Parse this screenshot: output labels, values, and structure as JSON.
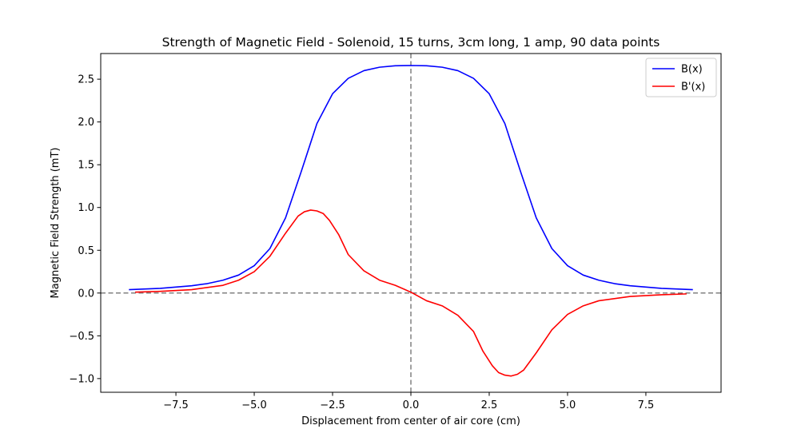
{
  "chart_data": {
    "type": "line",
    "title": "Strength of Magnetic Field - Solenoid, 15 turns, 3cm long, 1 amp, 90 data points",
    "xlabel": "Displacement from center of air core (cm)",
    "ylabel": "Magnetic Field Strength (mT)",
    "xlim": [
      -9.9,
      9.9
    ],
    "ylim": [
      -1.16,
      2.8
    ],
    "xticks": [
      -7.5,
      -5.0,
      -2.5,
      0.0,
      2.5,
      5.0,
      7.5
    ],
    "xtick_labels": [
      "−7.5",
      "−5.0",
      "−2.5",
      "0.0",
      "2.5",
      "5.0",
      "7.5"
    ],
    "yticks": [
      -1.0,
      -0.5,
      0.0,
      0.5,
      1.0,
      1.5,
      2.0,
      2.5
    ],
    "ytick_labels": [
      "−1.0",
      "−0.5",
      "0.0",
      "0.5",
      "1.0",
      "1.5",
      "2.0",
      "2.5"
    ],
    "grid": false,
    "legend_position": "top-right",
    "reference_lines": {
      "x": 0,
      "y": 0,
      "color": "#808080",
      "style": "dashed"
    },
    "series": [
      {
        "name": "B(x)",
        "color": "#0000ff",
        "x": [
          -9.0,
          -8.0,
          -7.0,
          -6.5,
          -6.0,
          -5.5,
          -5.0,
          -4.5,
          -4.0,
          -3.5,
          -3.0,
          -2.5,
          -2.0,
          -1.5,
          -1.0,
          -0.5,
          0.0,
          0.5,
          1.0,
          1.5,
          2.0,
          2.5,
          3.0,
          3.5,
          4.0,
          4.5,
          5.0,
          5.5,
          6.0,
          6.5,
          7.0,
          8.0,
          9.0
        ],
        "y": [
          0.04,
          0.055,
          0.085,
          0.11,
          0.15,
          0.21,
          0.32,
          0.52,
          0.88,
          1.42,
          1.98,
          2.33,
          2.51,
          2.6,
          2.64,
          2.657,
          2.66,
          2.657,
          2.64,
          2.6,
          2.51,
          2.33,
          1.98,
          1.42,
          0.88,
          0.52,
          0.32,
          0.21,
          0.15,
          0.11,
          0.085,
          0.055,
          0.04
        ]
      },
      {
        "name": "B'(x)",
        "color": "#ff0000",
        "x": [
          -8.8,
          -8.0,
          -7.0,
          -6.0,
          -5.5,
          -5.0,
          -4.5,
          -4.0,
          -3.6,
          -3.4,
          -3.2,
          -3.0,
          -2.8,
          -2.6,
          -2.3,
          -2.0,
          -1.5,
          -1.0,
          -0.5,
          0.0,
          0.5,
          1.0,
          1.5,
          2.0,
          2.3,
          2.6,
          2.8,
          3.0,
          3.2,
          3.4,
          3.6,
          4.0,
          4.5,
          5.0,
          5.5,
          6.0,
          7.0,
          8.0,
          8.8
        ],
        "y": [
          0.01,
          0.02,
          0.04,
          0.09,
          0.15,
          0.25,
          0.43,
          0.7,
          0.9,
          0.95,
          0.97,
          0.96,
          0.93,
          0.85,
          0.68,
          0.45,
          0.26,
          0.15,
          0.09,
          0.01,
          -0.09,
          -0.15,
          -0.26,
          -0.45,
          -0.68,
          -0.85,
          -0.93,
          -0.96,
          -0.97,
          -0.95,
          -0.9,
          -0.7,
          -0.43,
          -0.25,
          -0.15,
          -0.09,
          -0.04,
          -0.02,
          -0.01
        ]
      }
    ]
  }
}
